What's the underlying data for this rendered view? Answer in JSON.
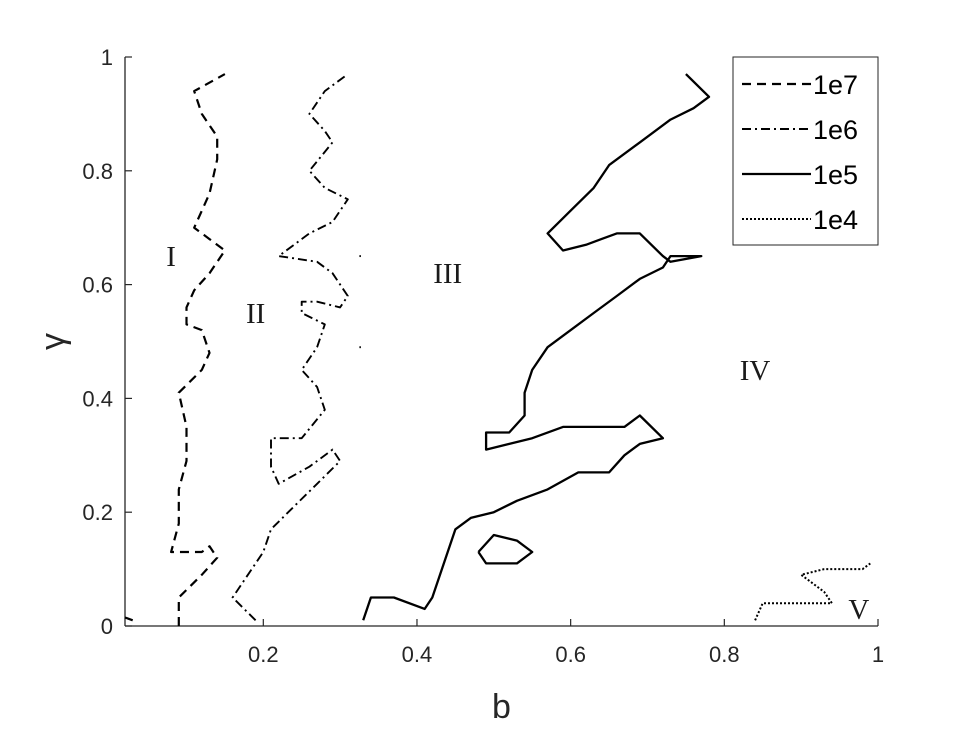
{
  "chart_data": {
    "type": "line",
    "title": "",
    "xlabel": "b",
    "ylabel": "γ",
    "xlim": [
      0.02,
      1.0
    ],
    "ylim": [
      0,
      1.0
    ],
    "x_ticks": [
      0.2,
      0.4,
      0.6,
      0.8,
      1
    ],
    "x_tick_labels": [
      "0.2",
      "0.4",
      "0.6",
      "0.8",
      "1"
    ],
    "y_ticks": [
      0,
      0.2,
      0.4,
      0.6,
      0.8,
      1
    ],
    "y_tick_labels": [
      "0",
      "0.2",
      "0.4",
      "0.6",
      "0.8",
      "1"
    ],
    "grid": false,
    "legend_position": "top-right",
    "series": [
      {
        "name": "1e7",
        "style": "dashed",
        "segments": [
          [
            [
              0.09,
              0.0
            ],
            [
              0.09,
              0.05
            ],
            [
              0.12,
              0.09
            ],
            [
              0.14,
              0.12
            ],
            [
              0.13,
              0.14
            ],
            [
              0.12,
              0.13
            ],
            [
              0.1,
              0.13
            ],
            [
              0.08,
              0.13
            ],
            [
              0.09,
              0.18
            ],
            [
              0.09,
              0.24
            ],
            [
              0.1,
              0.29
            ],
            [
              0.1,
              0.35
            ],
            [
              0.09,
              0.41
            ],
            [
              0.12,
              0.45
            ],
            [
              0.13,
              0.48
            ],
            [
              0.12,
              0.52
            ],
            [
              0.1,
              0.53
            ],
            [
              0.1,
              0.56
            ],
            [
              0.11,
              0.59
            ],
            [
              0.13,
              0.62
            ],
            [
              0.15,
              0.66
            ],
            [
              0.13,
              0.68
            ],
            [
              0.11,
              0.7
            ],
            [
              0.13,
              0.76
            ],
            [
              0.14,
              0.82
            ],
            [
              0.14,
              0.86
            ],
            [
              0.12,
              0.9
            ],
            [
              0.11,
              0.94
            ],
            [
              0.15,
              0.97
            ]
          ],
          [
            [
              0.02,
              0.015
            ],
            [
              0.03,
              0.01
            ]
          ]
        ]
      },
      {
        "name": "1e6",
        "style": "dashdot",
        "segments": [
          [
            [
              0.19,
              0.01
            ],
            [
              0.16,
              0.05
            ],
            [
              0.18,
              0.09
            ],
            [
              0.2,
              0.13
            ],
            [
              0.21,
              0.17
            ],
            [
              0.24,
              0.21
            ],
            [
              0.27,
              0.25
            ],
            [
              0.3,
              0.29
            ],
            [
              0.29,
              0.31
            ],
            [
              0.26,
              0.28
            ],
            [
              0.22,
              0.25
            ],
            [
              0.21,
              0.28
            ],
            [
              0.21,
              0.33
            ],
            [
              0.25,
              0.33
            ],
            [
              0.28,
              0.38
            ],
            [
              0.27,
              0.42
            ],
            [
              0.25,
              0.45
            ],
            [
              0.27,
              0.49
            ],
            [
              0.28,
              0.53
            ],
            [
              0.25,
              0.55
            ],
            [
              0.25,
              0.57
            ],
            [
              0.27,
              0.57
            ],
            [
              0.3,
              0.56
            ],
            [
              0.31,
              0.58
            ],
            [
              0.29,
              0.62
            ],
            [
              0.27,
              0.64
            ],
            [
              0.22,
              0.65
            ],
            [
              0.26,
              0.69
            ],
            [
              0.29,
              0.71
            ],
            [
              0.31,
              0.75
            ],
            [
              0.28,
              0.77
            ],
            [
              0.26,
              0.8
            ],
            [
              0.29,
              0.85
            ],
            [
              0.28,
              0.87
            ],
            [
              0.26,
              0.9
            ],
            [
              0.28,
              0.94
            ],
            [
              0.31,
              0.97
            ]
          ],
          [
            [
              0.325,
              0.65
            ],
            [
              0.327,
              0.65
            ]
          ],
          [
            [
              0.325,
              0.49
            ],
            [
              0.327,
              0.49
            ]
          ]
        ]
      },
      {
        "name": "1e5",
        "style": "solid",
        "segments": [
          [
            [
              0.33,
              0.01
            ],
            [
              0.34,
              0.05
            ],
            [
              0.37,
              0.05
            ],
            [
              0.41,
              0.03
            ],
            [
              0.42,
              0.05
            ],
            [
              0.43,
              0.09
            ],
            [
              0.44,
              0.13
            ],
            [
              0.45,
              0.17
            ],
            [
              0.47,
              0.19
            ],
            [
              0.5,
              0.2
            ],
            [
              0.53,
              0.22
            ],
            [
              0.57,
              0.24
            ],
            [
              0.61,
              0.27
            ],
            [
              0.65,
              0.27
            ],
            [
              0.67,
              0.3
            ],
            [
              0.69,
              0.32
            ],
            [
              0.72,
              0.33
            ],
            [
              0.69,
              0.37
            ],
            [
              0.67,
              0.35
            ],
            [
              0.64,
              0.35
            ],
            [
              0.59,
              0.35
            ],
            [
              0.55,
              0.33
            ],
            [
              0.49,
              0.31
            ],
            [
              0.49,
              0.34
            ],
            [
              0.52,
              0.34
            ],
            [
              0.54,
              0.37
            ],
            [
              0.54,
              0.41
            ],
            [
              0.55,
              0.45
            ],
            [
              0.57,
              0.49
            ],
            [
              0.6,
              0.52
            ],
            [
              0.63,
              0.55
            ],
            [
              0.66,
              0.58
            ],
            [
              0.69,
              0.61
            ],
            [
              0.72,
              0.63
            ],
            [
              0.73,
              0.65
            ],
            [
              0.77,
              0.65
            ],
            [
              0.73,
              0.64
            ],
            [
              0.72,
              0.65
            ],
            [
              0.69,
              0.69
            ],
            [
              0.66,
              0.69
            ],
            [
              0.64,
              0.68
            ],
            [
              0.62,
              0.67
            ],
            [
              0.59,
              0.66
            ],
            [
              0.57,
              0.69
            ],
            [
              0.6,
              0.73
            ],
            [
              0.63,
              0.77
            ],
            [
              0.65,
              0.81
            ],
            [
              0.69,
              0.85
            ],
            [
              0.73,
              0.89
            ],
            [
              0.76,
              0.91
            ],
            [
              0.78,
              0.93
            ],
            [
              0.75,
              0.97
            ]
          ],
          [
            [
              0.48,
              0.13
            ],
            [
              0.5,
              0.16
            ],
            [
              0.53,
              0.15
            ],
            [
              0.55,
              0.13
            ],
            [
              0.53,
              0.11
            ],
            [
              0.49,
              0.11
            ],
            [
              0.48,
              0.13
            ]
          ]
        ]
      },
      {
        "name": "1e4",
        "style": "dotted",
        "segments": [
          [
            [
              0.84,
              0.01
            ],
            [
              0.85,
              0.04
            ],
            [
              0.94,
              0.04
            ],
            [
              0.93,
              0.06
            ],
            [
              0.9,
              0.09
            ],
            [
              0.93,
              0.1
            ],
            [
              0.98,
              0.1
            ],
            [
              0.99,
              0.11
            ]
          ]
        ]
      }
    ],
    "annotations": [
      {
        "text": "I",
        "x": 0.08,
        "y": 0.65
      },
      {
        "text": "II",
        "x": 0.19,
        "y": 0.55
      },
      {
        "text": "III",
        "x": 0.44,
        "y": 0.62
      },
      {
        "text": "IV",
        "x": 0.84,
        "y": 0.45
      },
      {
        "text": "V",
        "x": 0.975,
        "y": 0.03
      }
    ]
  }
}
